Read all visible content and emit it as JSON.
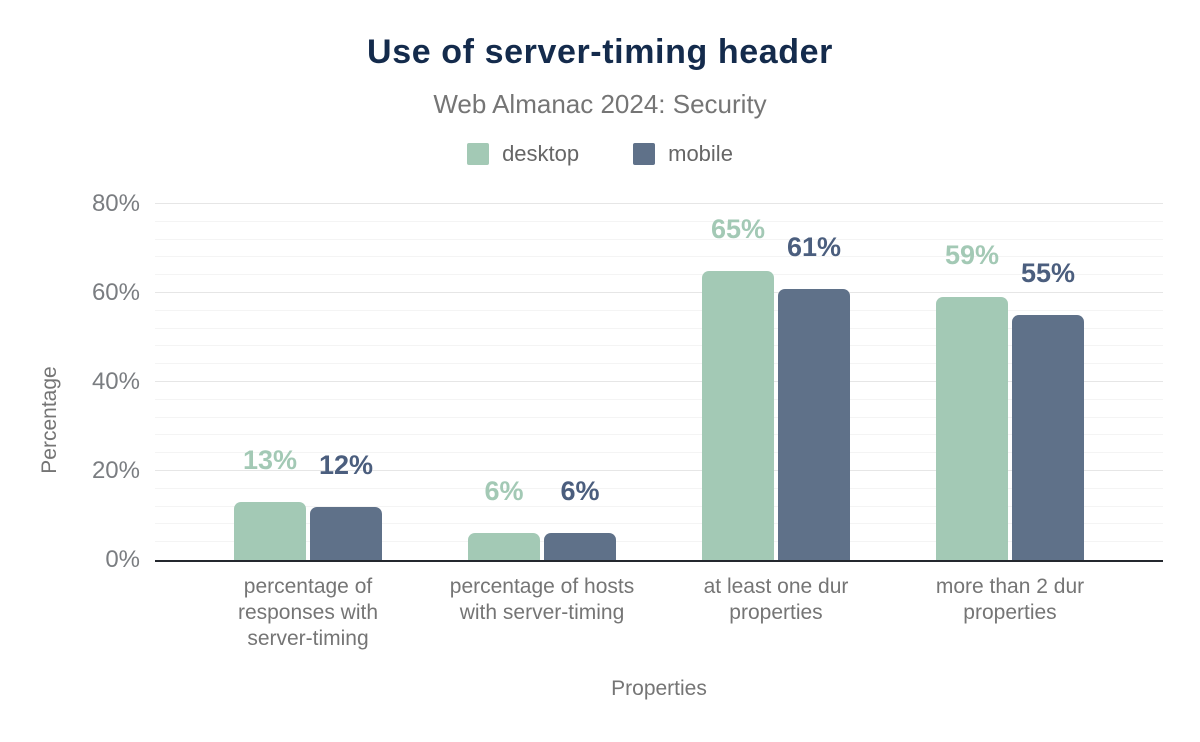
{
  "chart_data": {
    "type": "bar",
    "title": "Use of server-timing header",
    "subtitle": "Web Almanac 2024: Security",
    "xlabel": "Properties",
    "ylabel": "Percentage",
    "ylim": [
      0,
      80
    ],
    "y_tick_step": 20,
    "minor_grid_step": 4,
    "grid": true,
    "legend_position": "top",
    "y_ticks": [
      "0%",
      "20%",
      "40%",
      "60%",
      "80%"
    ],
    "categories": [
      "percentage of responses with server-timing",
      "percentage of hosts with server-timing",
      "at least one dur properties",
      "more than 2 dur properties"
    ],
    "category_lines": [
      [
        "percentage of",
        "responses with",
        "server-timing"
      ],
      [
        "percentage of hosts",
        "with server-timing"
      ],
      [
        "at least one dur",
        "properties"
      ],
      [
        "more than 2 dur",
        "properties"
      ]
    ],
    "series": [
      {
        "name": "desktop",
        "color": "#a3c9b5",
        "label_color": "#a3c9b5",
        "values": [
          13,
          6,
          65,
          59
        ],
        "labels": [
          "13%",
          "6%",
          "65%",
          "59%"
        ]
      },
      {
        "name": "mobile",
        "color": "#5f7189",
        "label_color": "#4b5e7e",
        "values": [
          12,
          6,
          61,
          55
        ],
        "labels": [
          "12%",
          "6%",
          "61%",
          "55%"
        ]
      }
    ]
  },
  "colors": {
    "title": "#142b4c",
    "subtitle": "#757575",
    "axis_text": "#757575",
    "tick_text": "#7a7d81",
    "grid_minor": "#f4f4f4",
    "grid_major": "#e6e6e6",
    "axis_line": "#24282e",
    "desktop": "#a3c9b5",
    "mobile": "#5f7189",
    "background": "#ffffff"
  }
}
